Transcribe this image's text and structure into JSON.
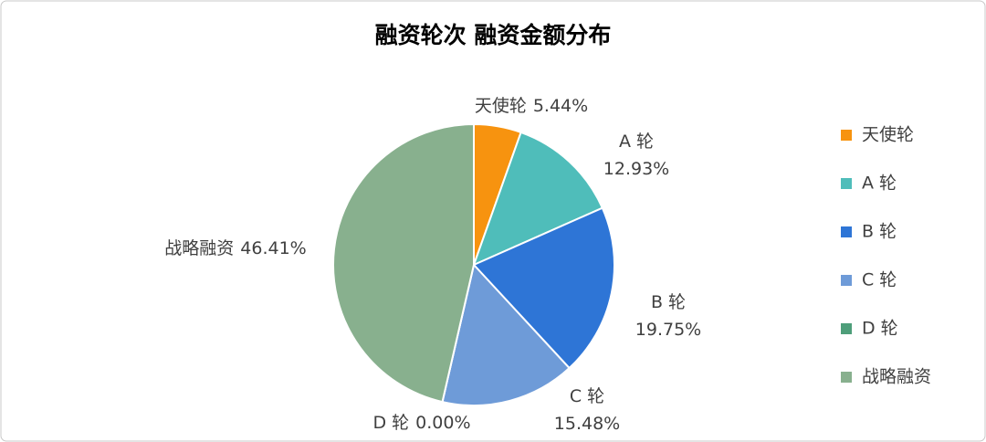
{
  "chart_data": {
    "type": "pie",
    "title": "融资轮次 融资金额分布",
    "categories": [
      "天使轮",
      "A 轮",
      "B 轮",
      "C 轮",
      "D 轮",
      "战略融资"
    ],
    "values": [
      5.44,
      12.93,
      19.75,
      15.48,
      0.0,
      46.41
    ],
    "value_labels": [
      "5.44%",
      "12.93%",
      "19.75%",
      "15.48%",
      "0.00%",
      "46.41%"
    ],
    "colors": [
      "#F7930F",
      "#4FBDBA",
      "#2E75D6",
      "#6E9BD8",
      "#4E9E7A",
      "#88B08E"
    ],
    "legend": "right"
  }
}
